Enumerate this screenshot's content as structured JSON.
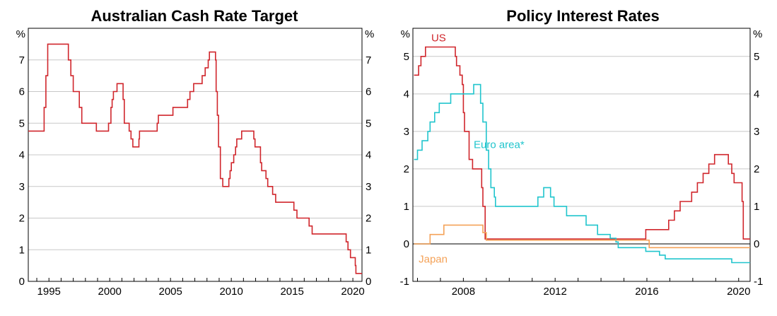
{
  "chart_data": [
    {
      "type": "line",
      "title": "Australian Cash Rate Target",
      "ylabel": "%",
      "ylim": [
        0,
        8
      ],
      "xlim": [
        1993.3,
        2020.75
      ],
      "yticks": [
        0,
        1,
        2,
        3,
        4,
        5,
        6,
        7
      ],
      "xticks": [
        1995,
        2000,
        2005,
        2010,
        2015,
        2020
      ],
      "grid": true,
      "step": true,
      "series": [
        {
          "color": "#d0262c",
          "points": [
            [
              1993.3,
              4.75
            ],
            [
              1994.6,
              5.5
            ],
            [
              1994.75,
              6.5
            ],
            [
              1994.9,
              7.5
            ],
            [
              1996.6,
              7.0
            ],
            [
              1996.8,
              6.5
            ],
            [
              1997.0,
              6.0
            ],
            [
              1997.5,
              5.5
            ],
            [
              1997.7,
              5.0
            ],
            [
              1998.9,
              4.75
            ],
            [
              1999.9,
              5.0
            ],
            [
              2000.1,
              5.5
            ],
            [
              2000.2,
              5.75
            ],
            [
              2000.3,
              6.0
            ],
            [
              2000.6,
              6.25
            ],
            [
              2001.1,
              5.75
            ],
            [
              2001.2,
              5.0
            ],
            [
              2001.6,
              4.75
            ],
            [
              2001.75,
              4.5
            ],
            [
              2001.9,
              4.25
            ],
            [
              2002.4,
              4.5
            ],
            [
              2002.45,
              4.75
            ],
            [
              2003.9,
              5.0
            ],
            [
              2004.0,
              5.25
            ],
            [
              2005.2,
              5.5
            ],
            [
              2006.4,
              5.75
            ],
            [
              2006.6,
              6.0
            ],
            [
              2006.9,
              6.25
            ],
            [
              2007.6,
              6.5
            ],
            [
              2007.85,
              6.75
            ],
            [
              2008.1,
              7.0
            ],
            [
              2008.2,
              7.25
            ],
            [
              2008.7,
              7.0
            ],
            [
              2008.75,
              6.0
            ],
            [
              2008.85,
              5.25
            ],
            [
              2008.95,
              4.25
            ],
            [
              2009.1,
              3.25
            ],
            [
              2009.3,
              3.0
            ],
            [
              2009.8,
              3.25
            ],
            [
              2009.9,
              3.5
            ],
            [
              2010.0,
              3.75
            ],
            [
              2010.2,
              4.0
            ],
            [
              2010.35,
              4.25
            ],
            [
              2010.45,
              4.5
            ],
            [
              2010.85,
              4.75
            ],
            [
              2011.85,
              4.5
            ],
            [
              2011.95,
              4.25
            ],
            [
              2012.4,
              3.75
            ],
            [
              2012.5,
              3.5
            ],
            [
              2012.85,
              3.25
            ],
            [
              2013.0,
              3.0
            ],
            [
              2013.4,
              2.75
            ],
            [
              2013.65,
              2.5
            ],
            [
              2015.15,
              2.25
            ],
            [
              2015.4,
              2.0
            ],
            [
              2016.4,
              1.75
            ],
            [
              2016.65,
              1.5
            ],
            [
              2019.45,
              1.25
            ],
            [
              2019.6,
              1.0
            ],
            [
              2019.8,
              0.75
            ],
            [
              2020.2,
              0.5
            ],
            [
              2020.25,
              0.25
            ],
            [
              2020.75,
              0.25
            ]
          ]
        }
      ]
    },
    {
      "type": "line",
      "title": "Policy Interest Rates",
      "ylabel": "%",
      "ylim": [
        -1,
        5.75
      ],
      "xlim": [
        2005.8,
        2020.5
      ],
      "yticks": [
        -1,
        0,
        1,
        2,
        3,
        4,
        5
      ],
      "xticks": [
        2008,
        2012,
        2016,
        2020
      ],
      "grid": true,
      "step": true,
      "annotation": "*",
      "series": [
        {
          "name": "US",
          "color": "#d0262c",
          "label_pos": [
            2006.6,
            5.4
          ],
          "points": [
            [
              2005.85,
              4.5
            ],
            [
              2006.05,
              4.75
            ],
            [
              2006.15,
              5.0
            ],
            [
              2006.35,
              5.25
            ],
            [
              2007.65,
              5.0
            ],
            [
              2007.7,
              4.75
            ],
            [
              2007.85,
              4.5
            ],
            [
              2007.95,
              4.25
            ],
            [
              2008.0,
              3.5
            ],
            [
              2008.05,
              3.0
            ],
            [
              2008.25,
              2.25
            ],
            [
              2008.4,
              2.0
            ],
            [
              2008.8,
              1.5
            ],
            [
              2008.85,
              1.0
            ],
            [
              2008.95,
              0.13
            ],
            [
              2015.95,
              0.38
            ],
            [
              2016.95,
              0.63
            ],
            [
              2017.2,
              0.88
            ],
            [
              2017.45,
              1.13
            ],
            [
              2017.95,
              1.38
            ],
            [
              2018.2,
              1.63
            ],
            [
              2018.45,
              1.88
            ],
            [
              2018.7,
              2.13
            ],
            [
              2018.95,
              2.38
            ],
            [
              2019.55,
              2.13
            ],
            [
              2019.7,
              1.88
            ],
            [
              2019.8,
              1.63
            ],
            [
              2020.15,
              1.13
            ],
            [
              2020.2,
              0.13
            ],
            [
              2020.5,
              0.13
            ]
          ]
        },
        {
          "name": "Euro area*",
          "color": "#21c5cd",
          "label_pos": [
            2008.45,
            2.55
          ],
          "points": [
            [
              2005.85,
              2.25
            ],
            [
              2006.0,
              2.5
            ],
            [
              2006.2,
              2.75
            ],
            [
              2006.45,
              3.0
            ],
            [
              2006.55,
              3.25
            ],
            [
              2006.75,
              3.5
            ],
            [
              2006.95,
              3.75
            ],
            [
              2007.45,
              4.0
            ],
            [
              2008.45,
              4.25
            ],
            [
              2008.75,
              3.75
            ],
            [
              2008.85,
              3.25
            ],
            [
              2009.0,
              2.5
            ],
            [
              2009.1,
              2.0
            ],
            [
              2009.2,
              1.5
            ],
            [
              2009.35,
              1.25
            ],
            [
              2009.4,
              1.0
            ],
            [
              2011.25,
              1.25
            ],
            [
              2011.5,
              1.5
            ],
            [
              2011.8,
              1.25
            ],
            [
              2011.95,
              1.0
            ],
            [
              2012.5,
              0.75
            ],
            [
              2013.35,
              0.5
            ],
            [
              2013.85,
              0.25
            ],
            [
              2014.4,
              0.15
            ],
            [
              2014.65,
              0.05
            ],
            [
              2014.75,
              -0.1
            ],
            [
              2015.95,
              -0.2
            ],
            [
              2016.55,
              -0.3
            ],
            [
              2016.8,
              -0.4
            ],
            [
              2019.7,
              -0.5
            ],
            [
              2020.5,
              -0.5
            ]
          ]
        },
        {
          "name": "Japan",
          "color": "#f4a258",
          "label_pos": [
            2006.05,
            -0.5
          ],
          "points": [
            [
              2005.85,
              0.0
            ],
            [
              2006.55,
              0.25
            ],
            [
              2007.15,
              0.5
            ],
            [
              2008.85,
              0.3
            ],
            [
              2009.0,
              0.1
            ],
            [
              2016.1,
              -0.1
            ],
            [
              2020.5,
              -0.1
            ]
          ]
        }
      ]
    }
  ]
}
